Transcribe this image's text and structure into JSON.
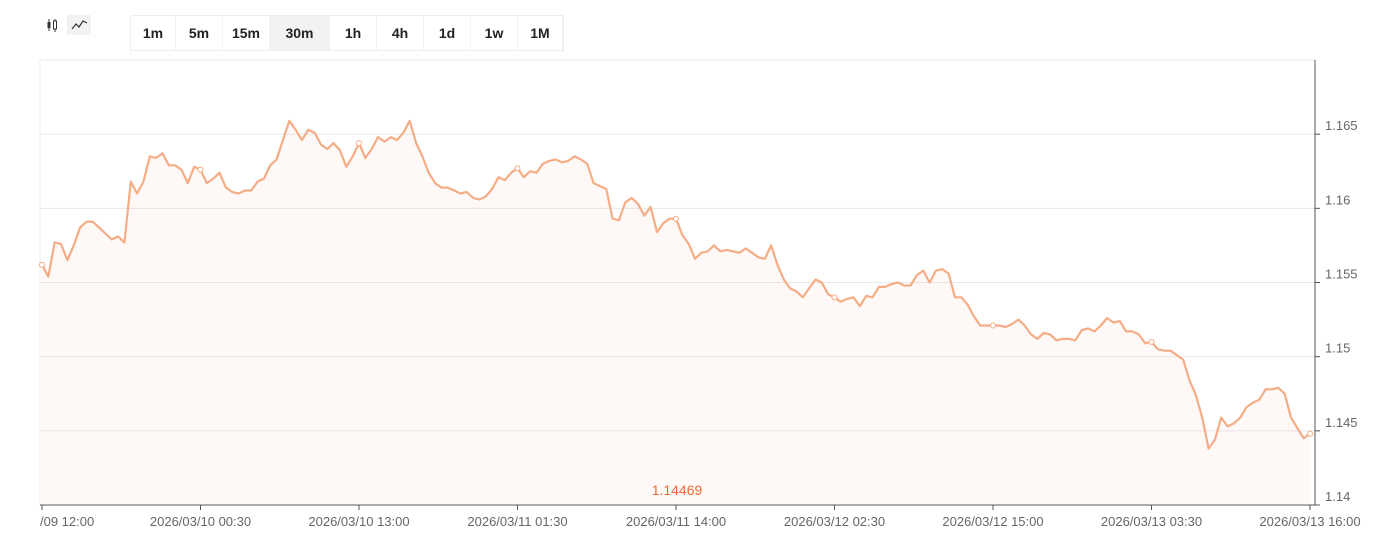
{
  "toolbar": {
    "intervals": [
      "1m",
      "5m",
      "15m",
      "30m",
      "1h",
      "4h",
      "1d",
      "1w",
      "1M"
    ],
    "selected": 3
  },
  "chart_data": {
    "type": "line",
    "annotation": "1.14469",
    "series": [
      {
        "color": "#f4ad86",
        "values": [
          1.1562,
          1.1554,
          1.1577,
          1.1576,
          1.1565,
          1.1575,
          1.1587,
          1.1591,
          1.1591,
          1.1587,
          1.1583,
          1.1579,
          1.1581,
          1.1577,
          1.1618,
          1.161,
          1.1618,
          1.1635,
          1.1634,
          1.1637,
          1.1629,
          1.1629,
          1.1626,
          1.1617,
          1.1628,
          1.1626,
          1.1617,
          1.162,
          1.1624,
          1.1614,
          1.1611,
          1.161,
          1.1612,
          1.1612,
          1.1618,
          1.162,
          1.1629,
          1.1633,
          1.1646,
          1.1659,
          1.1653,
          1.1646,
          1.1653,
          1.1651,
          1.1643,
          1.164,
          1.1644,
          1.1639,
          1.1628,
          1.1635,
          1.1644,
          1.1634,
          1.164,
          1.1648,
          1.1645,
          1.1648,
          1.1646,
          1.1651,
          1.1659,
          1.1644,
          1.1635,
          1.1624,
          1.1617,
          1.1614,
          1.1614,
          1.1612,
          1.161,
          1.1611,
          1.1607,
          1.1606,
          1.1608,
          1.1613,
          1.1621,
          1.1619,
          1.1624,
          1.1627,
          1.1621,
          1.1625,
          1.1624,
          1.163,
          1.1632,
          1.1633,
          1.1631,
          1.1632,
          1.1635,
          1.1633,
          1.163,
          1.1617,
          1.1615,
          1.1613,
          1.1593,
          1.1592,
          1.1604,
          1.1607,
          1.1603,
          1.1595,
          1.1601,
          1.1584,
          1.159,
          1.1593,
          1.1593,
          1.1582,
          1.1576,
          1.1566,
          1.157,
          1.1571,
          1.1575,
          1.1571,
          1.1572,
          1.1571,
          1.157,
          1.1573,
          1.157,
          1.1567,
          1.1566,
          1.1575,
          1.1562,
          1.1552,
          1.1546,
          1.1544,
          1.154,
          1.1546,
          1.1552,
          1.155,
          1.1542,
          1.154,
          1.1537,
          1.1539,
          1.154,
          1.1534,
          1.1541,
          1.154,
          1.1547,
          1.1547,
          1.1549,
          1.155,
          1.1548,
          1.1548,
          1.1555,
          1.1558,
          1.155,
          1.1558,
          1.1559,
          1.1556,
          1.154,
          1.154,
          1.1535,
          1.1527,
          1.1521,
          1.1521,
          1.1521,
          1.1521,
          1.152,
          1.1522,
          1.1525,
          1.1521,
          1.1515,
          1.1512,
          1.1516,
          1.1515,
          1.1511,
          1.1512,
          1.1512,
          1.1511,
          1.1518,
          1.1519,
          1.1517,
          1.1521,
          1.1526,
          1.1523,
          1.1524,
          1.1517,
          1.1517,
          1.1515,
          1.1509,
          1.151,
          1.1505,
          1.1504,
          1.1504,
          1.1501,
          1.1498,
          1.1484,
          1.1474,
          1.1459,
          1.1438,
          1.1444,
          1.1459,
          1.1453,
          1.1455,
          1.1459,
          1.1466,
          1.1469,
          1.1471,
          1.1478,
          1.1478,
          1.1479,
          1.1475,
          1.1459,
          1.1452,
          1.1445,
          1.1448
        ]
      }
    ],
    "xlim": [
      0,
      200
    ],
    "xticks": [
      {
        "value": 0,
        "label": "/09 12:00"
      },
      {
        "value": 25,
        "label": "2026/03/10 00:30"
      },
      {
        "value": 50,
        "label": "2026/03/10 13:00"
      },
      {
        "value": 75,
        "label": "2026/03/11 01:30"
      },
      {
        "value": 100,
        "label": "2026/03/11 14:00"
      },
      {
        "value": 125,
        "label": "2026/03/12 02:30"
      },
      {
        "value": 150,
        "label": "2026/03/12 15:00"
      },
      {
        "value": 175,
        "label": "2026/03/13 03:30"
      },
      {
        "value": 200,
        "label": "2026/03/13 16:00"
      }
    ],
    "ylim": [
      1.14,
      1.17
    ],
    "yticks": [
      1.14,
      1.145,
      1.15,
      1.155,
      1.16,
      1.165
    ],
    "grid": true
  }
}
